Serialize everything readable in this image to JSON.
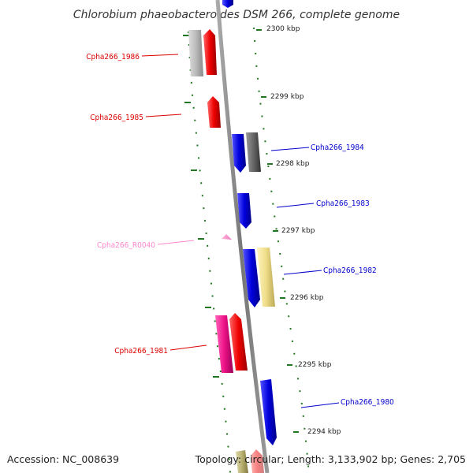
{
  "title": "Chlorobium phaeobacteroides DSM 266, complete genome",
  "accession": "Accession: NC_008639",
  "topology": "Topology: circular; Length: 3,133,902 bp; Genes: 2,705",
  "colors": {
    "red": "#ee0000",
    "blue": "#0000dd",
    "gray": "#bbbbbb",
    "darkgray": "#666666",
    "yellow": "#eedd88",
    "pink": "#ff88cc",
    "magenta": "#ee1188",
    "olive": "#b8b070",
    "tick": "#227722",
    "backbone": "#888888"
  },
  "kbp_labels": [
    "2300 kbp",
    "2299 kbp",
    "2298 kbp",
    "2297 kbp",
    "2296 kbp",
    "2295 kbp",
    "2294 kbp"
  ],
  "genes": [
    {
      "id": "Cpha266_1986",
      "color": "red",
      "strand": "minus"
    },
    {
      "id": "Cpha266_1985",
      "color": "red",
      "strand": "minus"
    },
    {
      "id": "Cpha266_1984",
      "color": "blue",
      "strand": "plus"
    },
    {
      "id": "Cpha266_1983",
      "color": "blue",
      "strand": "plus"
    },
    {
      "id": "Cpha266_R0040",
      "color": "pink",
      "strand": "minus"
    },
    {
      "id": "Cpha266_1982",
      "color": "blue",
      "strand": "plus"
    },
    {
      "id": "Cpha266_1981",
      "color": "red",
      "strand": "minus"
    },
    {
      "id": "Cpha266_1980",
      "color": "blue",
      "strand": "plus"
    }
  ]
}
